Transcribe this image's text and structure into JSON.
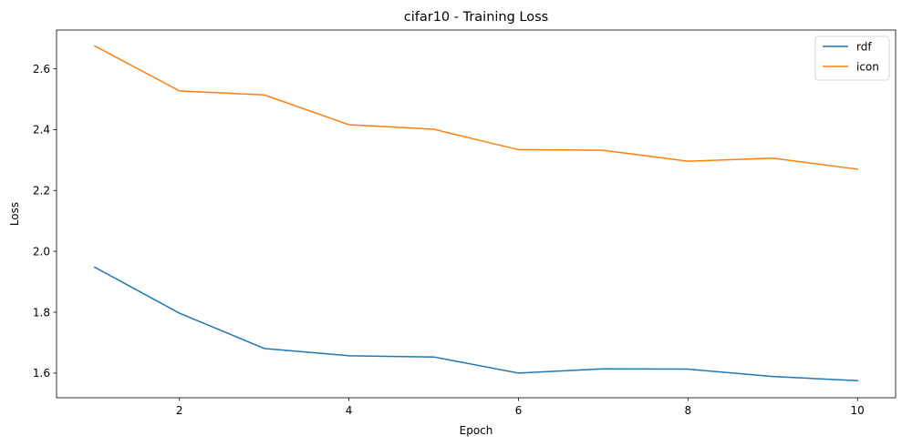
{
  "chart_data": {
    "type": "line",
    "title": "cifar10 - Training Loss",
    "xlabel": "Epoch",
    "ylabel": "Loss",
    "x": [
      1,
      2,
      3,
      4,
      5,
      6,
      7,
      8,
      9,
      10
    ],
    "xlim": [
      0.55,
      10.45
    ],
    "ylim": [
      1.519,
      2.727
    ],
    "xticks": [
      2,
      4,
      6,
      8,
      10
    ],
    "xtick_labels": [
      "2",
      "4",
      "6",
      "8",
      "10"
    ],
    "yticks": [
      1.6,
      1.8,
      2.0,
      2.2,
      2.4,
      2.6
    ],
    "ytick_labels": [
      "1.6",
      "1.8",
      "2.0",
      "2.2",
      "2.4",
      "2.6"
    ],
    "grid": false,
    "legend_position": "top-right",
    "series": [
      {
        "name": "rdf",
        "color": "#1f77b4",
        "values": [
          1.948,
          1.797,
          1.681,
          1.657,
          1.653,
          1.6,
          1.614,
          1.613,
          1.589,
          1.575
        ]
      },
      {
        "name": "icon",
        "color": "#ff7f0e",
        "values": [
          2.675,
          2.527,
          2.514,
          2.416,
          2.401,
          2.334,
          2.332,
          2.296,
          2.306,
          2.27
        ]
      }
    ]
  }
}
